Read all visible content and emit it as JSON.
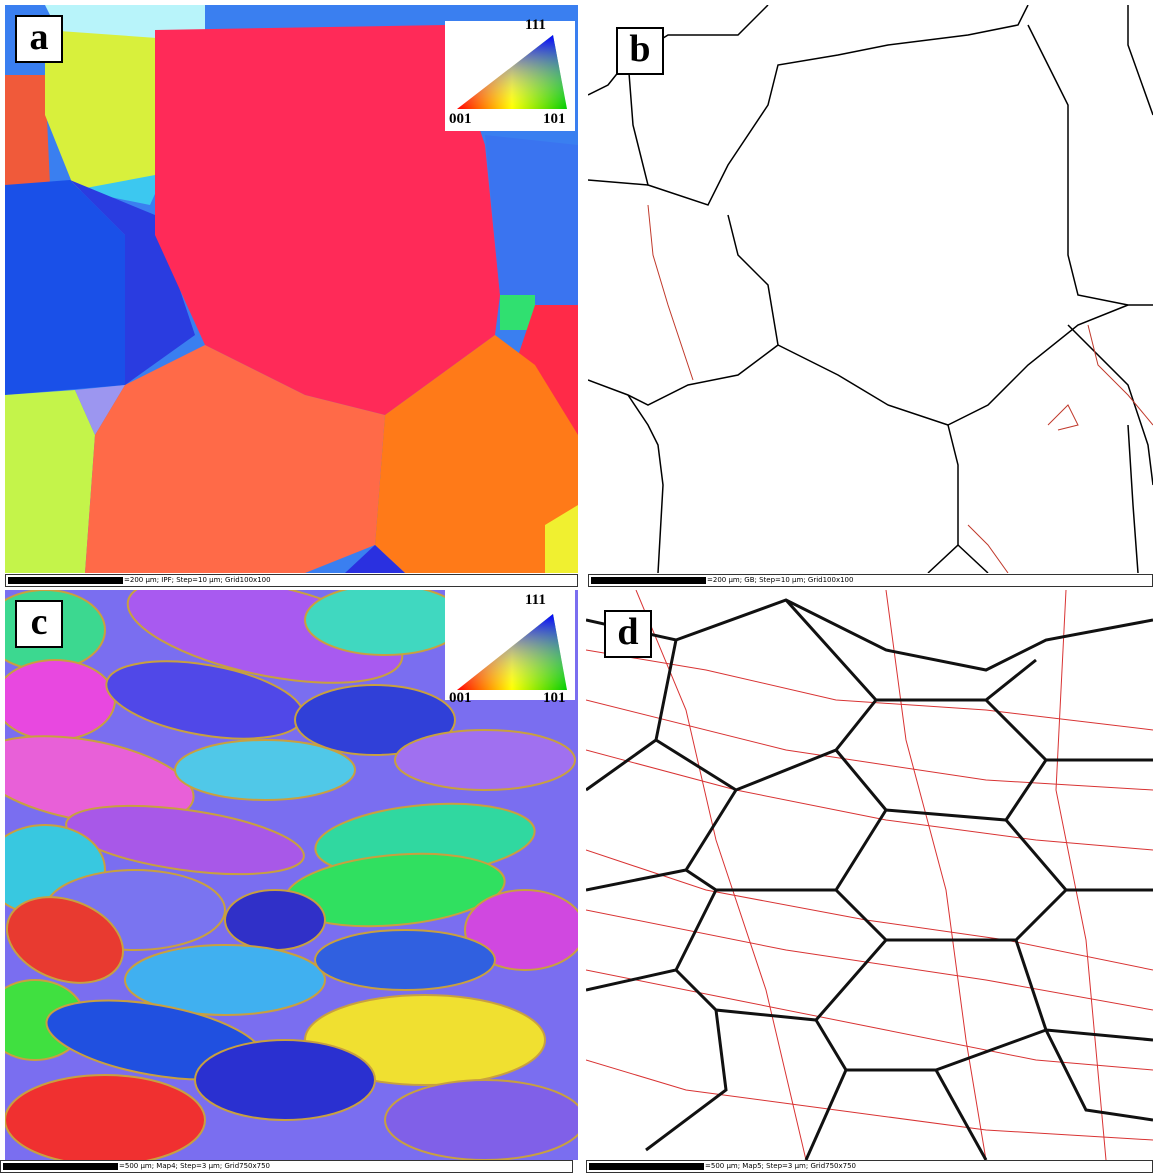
{
  "panels": [
    {
      "label": "a",
      "legend": {
        "top": "111",
        "left": "001",
        "right": "101"
      },
      "caption": "=200 µm; IPF; Step=10 µm; Grid100x100"
    },
    {
      "label": "b",
      "caption": "=200 µm; GB; Step=10 µm; Grid100x100"
    },
    {
      "label": "c",
      "legend": {
        "top": "111",
        "left": "001",
        "right": "101"
      },
      "caption": "=500 µm; Map4; Step=3 µm; Grid750x750"
    },
    {
      "label": "d",
      "caption": "=500 µm; Map5; Step=3 µm; Grid750x750"
    }
  ]
}
